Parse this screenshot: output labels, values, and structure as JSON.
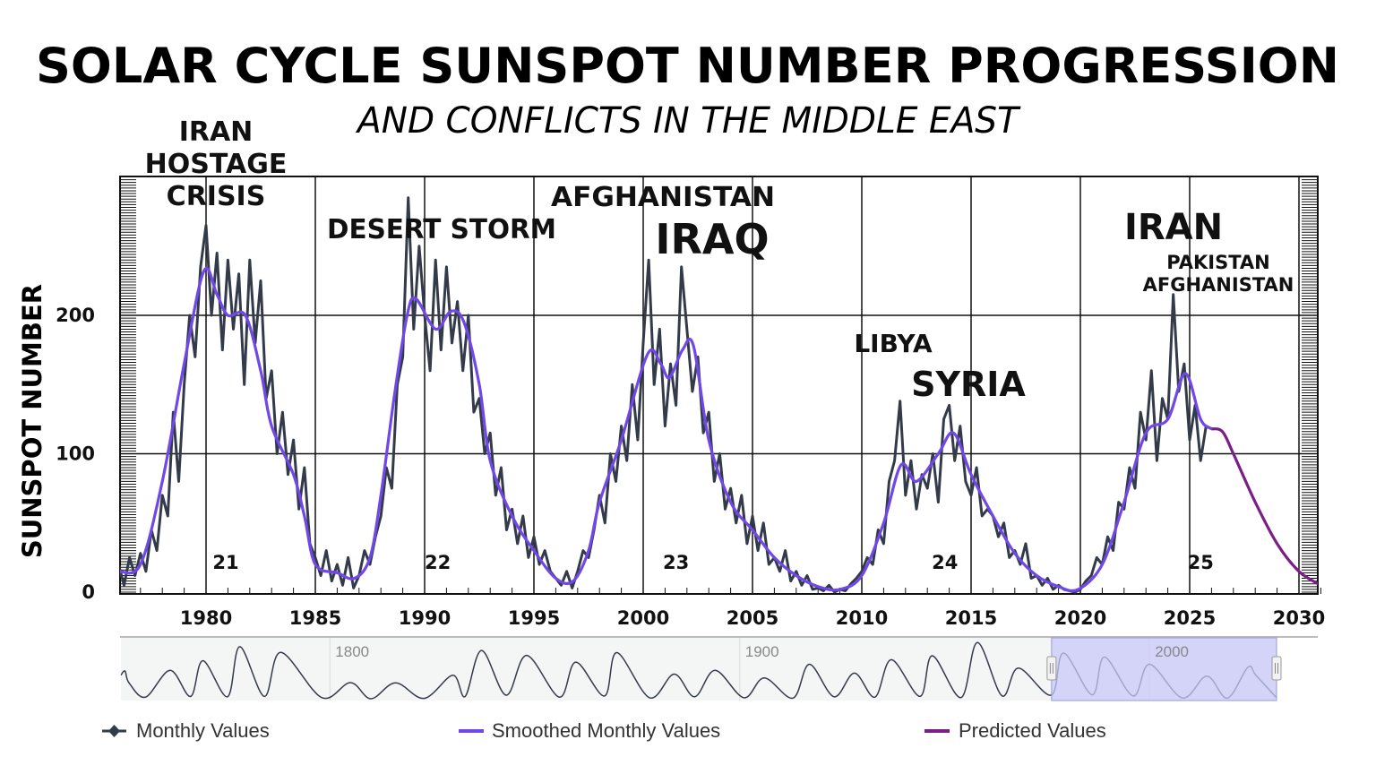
{
  "title": "SOLAR CYCLE SUNSPOT NUMBER PROGRESSION",
  "subtitle": "AND CONFLICTS IN THE MIDDLE EAST",
  "annotations": {
    "iran_hostage": [
      "IRAN",
      "HOSTAGE",
      "CRISIS"
    ],
    "desert_storm": "DESERT STORM",
    "afghanistan": "AFGHANISTAN",
    "iraq": "IRAQ",
    "libya": "LIBYA",
    "syria": "SYRIA",
    "iran": "IRAN",
    "pakistan_afghanistan": [
      "PAKISTAN",
      "AFGHANISTAN"
    ]
  },
  "chart_data": {
    "type": "line",
    "title": "SOLAR CYCLE SUNSPOT NUMBER PROGRESSION",
    "subtitle": "AND CONFLICTS IN THE MIDDLE EAST",
    "xlabel": "",
    "ylabel": "SUNSPOT NUMBER",
    "xlim": [
      1976.1,
      2031
    ],
    "ylim": [
      0,
      300
    ],
    "x_ticks": [
      "1980",
      "1985",
      "1990",
      "1995",
      "2000",
      "2005",
      "2010",
      "2015",
      "2020",
      "2025",
      "2030"
    ],
    "y_ticks": [
      "0",
      "100",
      "200"
    ],
    "grid": true,
    "legend_position": "bottom",
    "cycle_labels": [
      {
        "label": "21",
        "year": 1980.9
      },
      {
        "label": "22",
        "year": 1990.6
      },
      {
        "label": "23",
        "year": 2001.5
      },
      {
        "label": "24",
        "year": 2013.8
      },
      {
        "label": "25",
        "year": 2025.5
      }
    ],
    "series": [
      {
        "name": "Monthly Values",
        "color": "#333b4a",
        "x_start": 1976.0,
        "x_step": 0.25,
        "values": [
          20,
          5,
          25,
          12,
          28,
          15,
          45,
          30,
          70,
          55,
          130,
          80,
          150,
          200,
          170,
          235,
          265,
          200,
          245,
          175,
          240,
          190,
          230,
          150,
          240,
          180,
          225,
          140,
          160,
          100,
          130,
          85,
          110,
          60,
          90,
          35,
          25,
          12,
          30,
          8,
          20,
          5,
          25,
          3,
          12,
          30,
          20,
          40,
          55,
          90,
          75,
          150,
          170,
          285,
          190,
          250,
          200,
          160,
          240,
          175,
          235,
          180,
          210,
          160,
          200,
          130,
          140,
          100,
          115,
          70,
          90,
          45,
          60,
          35,
          55,
          25,
          40,
          20,
          30,
          15,
          10,
          5,
          15,
          3,
          15,
          30,
          25,
          45,
          70,
          50,
          100,
          80,
          120,
          95,
          150,
          110,
          180,
          240,
          150,
          190,
          120,
          165,
          135,
          235,
          190,
          145,
          170,
          115,
          130,
          80,
          100,
          60,
          75,
          50,
          70,
          35,
          55,
          30,
          50,
          20,
          25,
          15,
          30,
          8,
          15,
          5,
          12,
          2,
          3,
          1,
          5,
          0,
          2,
          1,
          6,
          10,
          15,
          25,
          20,
          45,
          35,
          80,
          95,
          138,
          70,
          95,
          60,
          85,
          75,
          100,
          65,
          125,
          135,
          95,
          120,
          80,
          70,
          90,
          55,
          60,
          55,
          40,
          50,
          25,
          30,
          20,
          35,
          10,
          12,
          5,
          10,
          2,
          5,
          2,
          1,
          0,
          2,
          8,
          12,
          25,
          20,
          40,
          30,
          65,
          60,
          90,
          75,
          130,
          110,
          160,
          95,
          140,
          125,
          215,
          145,
          165,
          110,
          135,
          95,
          120,
          118
        ]
      },
      {
        "name": "Smoothed Monthly Values",
        "color": "#7048e8",
        "points": [
          [
            1976,
            15
          ],
          [
            1977,
            20
          ],
          [
            1978,
            80
          ],
          [
            1979,
            165
          ],
          [
            1979.9,
            232
          ],
          [
            1980.5,
            215
          ],
          [
            1981,
            200
          ],
          [
            1981.8,
            200
          ],
          [
            1982.5,
            160
          ],
          [
            1983,
            120
          ],
          [
            1984,
            85
          ],
          [
            1984.5,
            55
          ],
          [
            1985,
            20
          ],
          [
            1986,
            14
          ],
          [
            1986.8,
            10
          ],
          [
            1987.5,
            25
          ],
          [
            1988,
            70
          ],
          [
            1988.6,
            140
          ],
          [
            1989.2,
            200
          ],
          [
            1989.6,
            212
          ],
          [
            1990.5,
            190
          ],
          [
            1991.2,
            203
          ],
          [
            1991.8,
            195
          ],
          [
            1992.5,
            150
          ],
          [
            1993,
            95
          ],
          [
            1994,
            55
          ],
          [
            1995,
            30
          ],
          [
            1996,
            10
          ],
          [
            1996.8,
            8
          ],
          [
            1997.5,
            30
          ],
          [
            1998,
            65
          ],
          [
            1999,
            110
          ],
          [
            2000.2,
            172
          ],
          [
            2000.8,
            165
          ],
          [
            2001.2,
            155
          ],
          [
            2001.8,
            175
          ],
          [
            2002.3,
            178
          ],
          [
            2003,
            110
          ],
          [
            2004,
            65
          ],
          [
            2005,
            45
          ],
          [
            2006,
            25
          ],
          [
            2007,
            12
          ],
          [
            2008,
            4
          ],
          [
            2009,
            2
          ],
          [
            2010,
            12
          ],
          [
            2011,
            50
          ],
          [
            2011.8,
            92
          ],
          [
            2012.5,
            80
          ],
          [
            2013.5,
            100
          ],
          [
            2014.2,
            115
          ],
          [
            2015,
            85
          ],
          [
            2016,
            55
          ],
          [
            2017,
            28
          ],
          [
            2018,
            12
          ],
          [
            2019,
            4
          ],
          [
            2019.9,
            2
          ],
          [
            2021,
            20
          ],
          [
            2022,
            65
          ],
          [
            2023,
            115
          ],
          [
            2024,
            125
          ],
          [
            2024.8,
            158
          ],
          [
            2025.5,
            125
          ],
          [
            2026,
            118
          ]
        ]
      },
      {
        "name": "Predicted Values",
        "color": "#7b1f86",
        "points": [
          [
            2026,
            118
          ],
          [
            2026.5,
            116
          ],
          [
            2027,
            100
          ],
          [
            2028,
            65
          ],
          [
            2029,
            35
          ],
          [
            2030,
            15
          ],
          [
            2031,
            5
          ]
        ]
      }
    ]
  },
  "navigator": {
    "x_labels": [
      "1800",
      "1900",
      "2000"
    ],
    "range": [
      1749,
      2031
    ],
    "selected_range": [
      1976.1,
      2031
    ],
    "fill": "#c8c8f8",
    "points": [
      [
        1749,
        120
      ],
      [
        1750,
        140
      ],
      [
        1751,
        80
      ],
      [
        1755,
        8
      ],
      [
        1761,
        144
      ],
      [
        1766,
        12
      ],
      [
        1769,
        193
      ],
      [
        1775,
        10
      ],
      [
        1778,
        264
      ],
      [
        1784,
        12
      ],
      [
        1788,
        235
      ],
      [
        1798,
        6
      ],
      [
        1805,
        82
      ],
      [
        1810,
        0
      ],
      [
        1816,
        81
      ],
      [
        1823,
        2
      ],
      [
        1830,
        119
      ],
      [
        1833,
        12
      ],
      [
        1837,
        245
      ],
      [
        1843,
        18
      ],
      [
        1848,
        220
      ],
      [
        1856,
        8
      ],
      [
        1860,
        186
      ],
      [
        1867,
        14
      ],
      [
        1870,
        234
      ],
      [
        1878,
        5
      ],
      [
        1884,
        125
      ],
      [
        1889,
        10
      ],
      [
        1894,
        144
      ],
      [
        1901,
        5
      ],
      [
        1906,
        106
      ],
      [
        1913,
        3
      ],
      [
        1917,
        175
      ],
      [
        1923,
        10
      ],
      [
        1928,
        130
      ],
      [
        1933,
        8
      ],
      [
        1937,
        198
      ],
      [
        1944,
        12
      ],
      [
        1947,
        218
      ],
      [
        1954,
        6
      ],
      [
        1958,
        285
      ],
      [
        1964,
        15
      ],
      [
        1968,
        156
      ],
      [
        1976,
        18
      ],
      [
        1979,
        232
      ],
      [
        1986,
        20
      ],
      [
        1989,
        212
      ],
      [
        1996,
        14
      ],
      [
        2000,
        175
      ],
      [
        2008,
        4
      ],
      [
        2014,
        115
      ],
      [
        2019,
        3
      ],
      [
        2024,
        160
      ],
      [
        2026,
        118
      ],
      [
        2031,
        5
      ]
    ]
  },
  "legend": [
    {
      "label": "Monthly Values",
      "icon": "line-diamond-icon",
      "color": "#333b4a"
    },
    {
      "label": "Smoothed Monthly Values",
      "icon": "line-icon",
      "color": "#7048e8"
    },
    {
      "label": "Predicted Values",
      "icon": "line-icon",
      "color": "#7b1f86"
    }
  ]
}
